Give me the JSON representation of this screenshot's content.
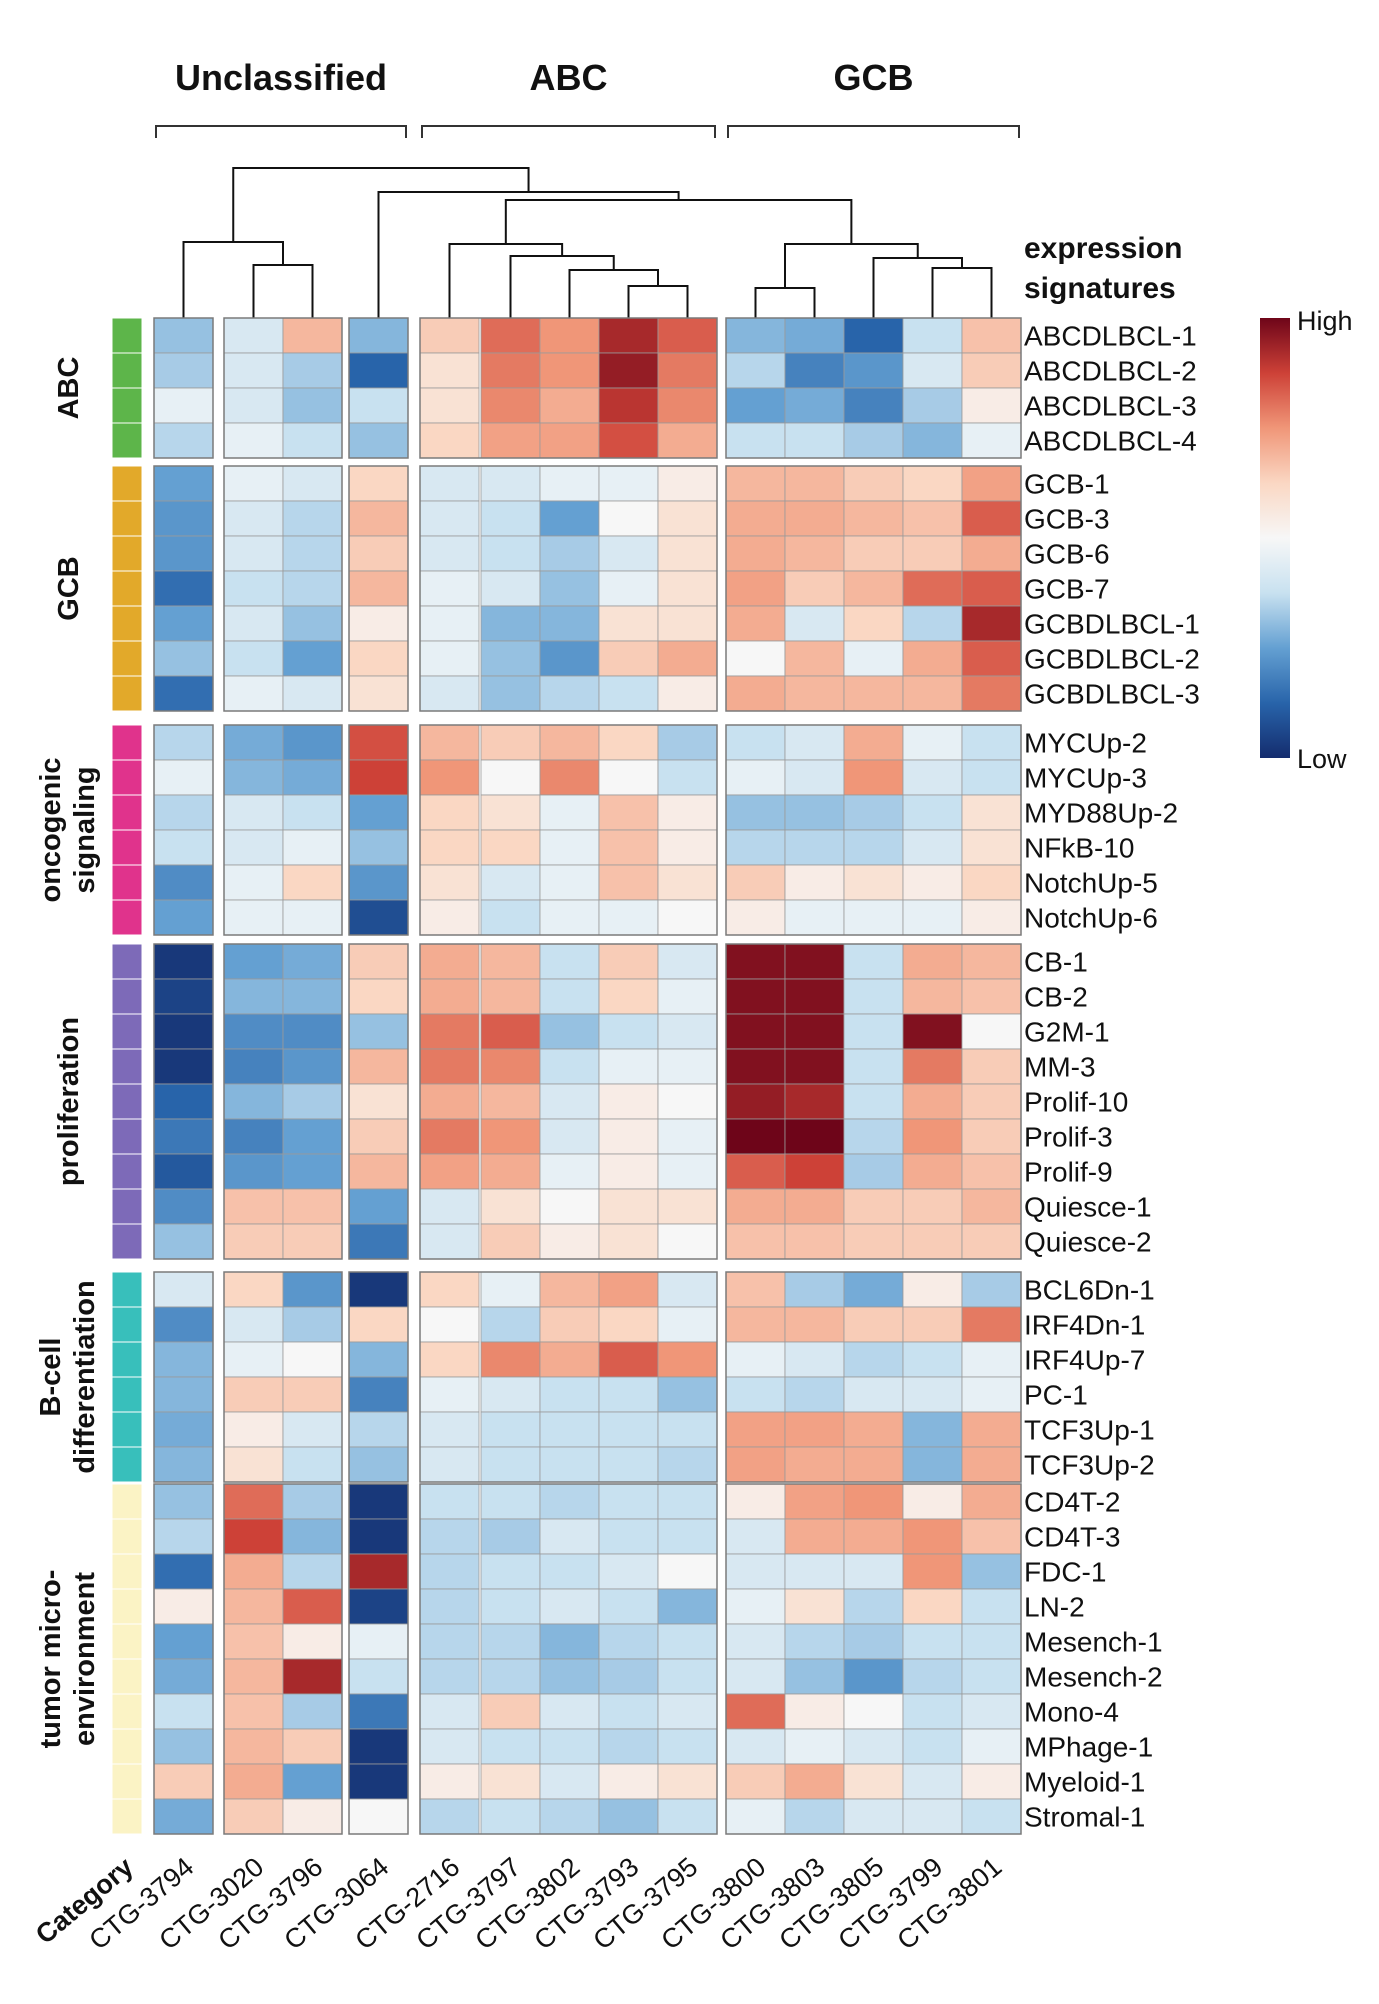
{
  "chart_data": {
    "type": "heatmap",
    "title": "",
    "column_groups": [
      {
        "label": "Unclassified",
        "columns": [
          "CTG-3794",
          "CTG-3020",
          "CTG-3796",
          "CTG-3064"
        ]
      },
      {
        "label": "ABC",
        "columns": [
          "CTG-2716",
          "CTG-3797",
          "CTG-3802",
          "CTG-3793",
          "CTG-3795"
        ]
      },
      {
        "label": "GCB",
        "columns": [
          "CTG-3800",
          "CTG-3803",
          "CTG-3805",
          "CTG-3799",
          "CTG-3801"
        ]
      }
    ],
    "columns": [
      "CTG-3794",
      "CTG-3020",
      "CTG-3796",
      "CTG-3064",
      "CTG-2716",
      "CTG-3797",
      "CTG-3802",
      "CTG-3793",
      "CTG-3795",
      "CTG-3800",
      "CTG-3803",
      "CTG-3805",
      "CTG-3799",
      "CTG-3801"
    ],
    "category_axis_label": "Category",
    "row_axis_title": "expression signatures",
    "legend": {
      "high_label": "High",
      "low_label": "Low",
      "range": [
        -1,
        1
      ]
    },
    "categories": [
      {
        "name": "ABC",
        "color": "#5db54a",
        "rows": [
          {
            "label": "ABCDLBCL-1",
            "values": [
              -0.3,
              -0.1,
              0.3,
              -0.35,
              0.2,
              0.6,
              0.45,
              0.85,
              0.65,
              -0.35,
              -0.4,
              -0.75,
              -0.15,
              0.25
            ]
          },
          {
            "label": "ABCDLBCL-2",
            "values": [
              -0.25,
              -0.1,
              -0.25,
              -0.75,
              0.1,
              0.55,
              0.45,
              0.9,
              0.55,
              -0.2,
              -0.6,
              -0.5,
              -0.1,
              0.2
            ]
          },
          {
            "label": "ABCDLBCL-3",
            "values": [
              -0.05,
              -0.1,
              -0.3,
              -0.15,
              0.1,
              0.5,
              0.35,
              0.8,
              0.5,
              -0.45,
              -0.4,
              -0.6,
              -0.25,
              0.05
            ]
          },
          {
            "label": "ABCDLBCL-4",
            "values": [
              -0.2,
              -0.05,
              -0.15,
              -0.3,
              0.15,
              0.4,
              0.4,
              0.7,
              0.35,
              -0.15,
              -0.15,
              -0.25,
              -0.35,
              -0.05
            ]
          }
        ]
      },
      {
        "name": "GCB",
        "color": "#e2a92a",
        "rows": [
          {
            "label": "GCB-1",
            "values": [
              -0.45,
              -0.05,
              -0.1,
              0.15,
              -0.1,
              -0.1,
              -0.05,
              -0.05,
              0.05,
              0.3,
              0.3,
              0.2,
              0.15,
              0.4
            ]
          },
          {
            "label": "GCB-3",
            "values": [
              -0.5,
              -0.1,
              -0.2,
              0.3,
              -0.1,
              -0.15,
              -0.45,
              0.0,
              0.1,
              0.35,
              0.35,
              0.3,
              0.25,
              0.65
            ]
          },
          {
            "label": "GCB-6",
            "values": [
              -0.5,
              -0.1,
              -0.2,
              0.2,
              -0.1,
              -0.15,
              -0.25,
              -0.1,
              0.1,
              0.35,
              0.3,
              0.2,
              0.2,
              0.35
            ]
          },
          {
            "label": "GCB-7",
            "values": [
              -0.7,
              -0.15,
              -0.2,
              0.3,
              -0.05,
              -0.1,
              -0.3,
              -0.05,
              0.1,
              0.4,
              0.2,
              0.3,
              0.6,
              0.65
            ]
          },
          {
            "label": "GCBDLBCL-1",
            "values": [
              -0.45,
              -0.1,
              -0.3,
              0.05,
              -0.05,
              -0.35,
              -0.35,
              0.1,
              0.1,
              0.35,
              -0.1,
              0.15,
              -0.2,
              0.85
            ]
          },
          {
            "label": "GCBDLBCL-2",
            "values": [
              -0.3,
              -0.15,
              -0.45,
              0.15,
              -0.05,
              -0.3,
              -0.5,
              0.2,
              0.35,
              0.0,
              0.3,
              -0.05,
              0.35,
              0.65
            ]
          },
          {
            "label": "GCBDLBCL-3",
            "values": [
              -0.7,
              -0.05,
              -0.1,
              0.1,
              -0.1,
              -0.3,
              -0.2,
              -0.15,
              0.05,
              0.35,
              0.3,
              0.3,
              0.3,
              0.55
            ]
          }
        ]
      },
      {
        "name": "oncogenic signaling",
        "color": "#e0338c",
        "rows": [
          {
            "label": "MYCUp-2",
            "values": [
              -0.2,
              -0.4,
              -0.5,
              0.7,
              0.3,
              0.2,
              0.3,
              0.15,
              -0.25,
              -0.15,
              -0.1,
              0.35,
              -0.05,
              -0.15
            ]
          },
          {
            "label": "MYCUp-3",
            "values": [
              -0.05,
              -0.35,
              -0.4,
              0.75,
              0.45,
              0.0,
              0.5,
              0.0,
              -0.15,
              -0.05,
              -0.1,
              0.45,
              -0.1,
              -0.15
            ]
          },
          {
            "label": "MYD88Up-2",
            "values": [
              -0.2,
              -0.1,
              -0.15,
              -0.45,
              0.15,
              0.1,
              -0.05,
              0.25,
              0.05,
              -0.3,
              -0.3,
              -0.25,
              -0.15,
              0.1
            ]
          },
          {
            "label": "NFkB-10",
            "values": [
              -0.15,
              -0.1,
              -0.05,
              -0.3,
              0.15,
              0.15,
              -0.05,
              0.25,
              0.05,
              -0.2,
              -0.2,
              -0.2,
              -0.1,
              0.1
            ]
          },
          {
            "label": "NotchUp-5",
            "values": [
              -0.55,
              -0.05,
              0.15,
              -0.5,
              0.1,
              -0.1,
              -0.05,
              0.25,
              0.1,
              0.2,
              0.05,
              0.1,
              0.05,
              0.15
            ]
          },
          {
            "label": "NotchUp-6",
            "values": [
              -0.45,
              -0.05,
              -0.05,
              -0.85,
              0.05,
              -0.15,
              -0.05,
              -0.05,
              0.0,
              0.05,
              -0.05,
              -0.05,
              -0.05,
              0.05
            ]
          }
        ]
      },
      {
        "name": "proliferation",
        "color": "#7d6ab8",
        "rows": [
          {
            "label": "CB-1",
            "values": [
              -0.95,
              -0.45,
              -0.4,
              0.2,
              0.35,
              0.3,
              -0.15,
              0.2,
              -0.1,
              0.95,
              0.95,
              -0.15,
              0.35,
              0.3
            ]
          },
          {
            "label": "CB-2",
            "values": [
              -0.9,
              -0.35,
              -0.35,
              0.15,
              0.35,
              0.3,
              -0.15,
              0.15,
              -0.05,
              0.95,
              0.95,
              -0.15,
              0.3,
              0.25
            ]
          },
          {
            "label": "G2M-1",
            "values": [
              -0.95,
              -0.55,
              -0.55,
              -0.3,
              0.55,
              0.65,
              -0.3,
              -0.15,
              -0.1,
              0.95,
              0.95,
              -0.15,
              0.95,
              0.0
            ]
          },
          {
            "label": "MM-3",
            "values": [
              -0.95,
              -0.6,
              -0.5,
              0.3,
              0.55,
              0.5,
              -0.15,
              -0.05,
              -0.05,
              0.95,
              0.95,
              -0.15,
              0.55,
              0.2
            ]
          },
          {
            "label": "Prolif-10",
            "values": [
              -0.75,
              -0.35,
              -0.25,
              0.1,
              0.35,
              0.3,
              -0.1,
              0.05,
              0.0,
              0.9,
              0.85,
              -0.15,
              0.35,
              0.2
            ]
          },
          {
            "label": "Prolif-3",
            "values": [
              -0.65,
              -0.6,
              -0.45,
              0.2,
              0.55,
              0.45,
              -0.1,
              0.05,
              -0.05,
              1.0,
              1.0,
              -0.2,
              0.45,
              0.2
            ]
          },
          {
            "label": "Prolif-9",
            "values": [
              -0.8,
              -0.5,
              -0.45,
              0.3,
              0.4,
              0.35,
              -0.05,
              0.05,
              -0.05,
              0.65,
              0.75,
              -0.25,
              0.35,
              0.25
            ]
          },
          {
            "label": "Quiesce-1",
            "values": [
              -0.55,
              0.25,
              0.25,
              -0.45,
              -0.1,
              0.1,
              0.0,
              0.1,
              0.1,
              0.35,
              0.35,
              0.2,
              0.2,
              0.3
            ]
          },
          {
            "label": "Quiesce-2",
            "values": [
              -0.3,
              0.2,
              0.2,
              -0.65,
              -0.1,
              0.2,
              0.05,
              0.1,
              0.0,
              0.25,
              0.25,
              0.2,
              0.2,
              0.2
            ]
          }
        ]
      },
      {
        "name": "B-cell differentiation",
        "color": "#38bfbb",
        "rows": [
          {
            "label": "BCL6Dn-1",
            "values": [
              -0.1,
              0.15,
              -0.5,
              -0.95,
              0.15,
              -0.05,
              0.3,
              0.4,
              -0.1,
              0.25,
              -0.25,
              -0.4,
              0.05,
              -0.25
            ]
          },
          {
            "label": "IRF4Dn-1",
            "values": [
              -0.55,
              -0.1,
              -0.25,
              0.15,
              0.0,
              -0.2,
              0.2,
              0.15,
              -0.05,
              0.3,
              0.3,
              0.2,
              0.2,
              0.55
            ]
          },
          {
            "label": "IRF4Up-7",
            "values": [
              -0.35,
              -0.05,
              0.0,
              -0.35,
              0.15,
              0.5,
              0.35,
              0.65,
              0.45,
              -0.05,
              -0.1,
              -0.2,
              -0.15,
              -0.05
            ]
          },
          {
            "label": "PC-1",
            "values": [
              -0.35,
              0.2,
              0.2,
              -0.6,
              -0.05,
              -0.1,
              -0.15,
              -0.15,
              -0.3,
              -0.15,
              -0.2,
              -0.1,
              -0.1,
              -0.05
            ]
          },
          {
            "label": "TCF3Up-1",
            "values": [
              -0.4,
              0.05,
              -0.1,
              -0.2,
              -0.1,
              -0.15,
              -0.15,
              -0.15,
              -0.15,
              0.4,
              0.4,
              0.35,
              -0.35,
              0.35
            ]
          },
          {
            "label": "TCF3Up-2",
            "values": [
              -0.35,
              0.1,
              -0.15,
              -0.3,
              -0.1,
              -0.15,
              -0.15,
              -0.15,
              -0.2,
              0.4,
              0.35,
              0.35,
              -0.35,
              0.35
            ]
          }
        ]
      },
      {
        "name": "tumor micro-environment",
        "color": "#fbf3c5",
        "rows": [
          {
            "label": "CD4T-2",
            "values": [
              -0.3,
              0.6,
              -0.25,
              -0.95,
              -0.15,
              -0.15,
              -0.2,
              -0.15,
              -0.15,
              0.05,
              0.4,
              0.45,
              0.05,
              0.35
            ]
          },
          {
            "label": "CD4T-3",
            "values": [
              -0.2,
              0.75,
              -0.35,
              -0.95,
              -0.2,
              -0.25,
              -0.1,
              -0.15,
              -0.15,
              -0.1,
              0.35,
              0.35,
              0.45,
              0.25
            ]
          },
          {
            "label": "FDC-1",
            "values": [
              -0.7,
              0.35,
              -0.2,
              0.85,
              -0.2,
              -0.15,
              -0.15,
              -0.1,
              0.0,
              -0.1,
              -0.1,
              -0.1,
              0.45,
              -0.3
            ]
          },
          {
            "label": "LN-2",
            "values": [
              0.05,
              0.3,
              0.65,
              -0.9,
              -0.2,
              -0.15,
              -0.1,
              -0.15,
              -0.35,
              -0.05,
              0.1,
              -0.2,
              0.15,
              -0.15
            ]
          },
          {
            "label": "Mesench-1",
            "values": [
              -0.45,
              0.25,
              0.05,
              -0.05,
              -0.2,
              -0.2,
              -0.35,
              -0.2,
              -0.15,
              -0.1,
              -0.2,
              -0.25,
              -0.15,
              -0.15
            ]
          },
          {
            "label": "Mesench-2",
            "values": [
              -0.4,
              0.3,
              0.85,
              -0.15,
              -0.2,
              -0.2,
              -0.3,
              -0.25,
              -0.15,
              -0.1,
              -0.3,
              -0.5,
              -0.2,
              -0.15
            ]
          },
          {
            "label": "Mono-4",
            "values": [
              -0.15,
              0.25,
              -0.25,
              -0.65,
              -0.1,
              0.2,
              -0.1,
              -0.15,
              -0.1,
              0.6,
              0.05,
              0.0,
              -0.15,
              -0.1
            ]
          },
          {
            "label": "MPhage-1",
            "values": [
              -0.3,
              0.3,
              0.2,
              -0.95,
              -0.1,
              -0.15,
              -0.15,
              -0.2,
              -0.15,
              -0.1,
              -0.05,
              -0.1,
              -0.15,
              -0.05
            ]
          },
          {
            "label": "Myeloid-1",
            "values": [
              0.2,
              0.35,
              -0.45,
              -0.95,
              0.05,
              0.1,
              -0.1,
              0.05,
              0.1,
              0.2,
              0.35,
              0.1,
              -0.1,
              0.05
            ]
          },
          {
            "label": "Stromal-1",
            "values": [
              -0.4,
              0.2,
              0.05,
              0.0,
              -0.2,
              -0.15,
              -0.2,
              -0.3,
              -0.15,
              -0.05,
              -0.2,
              -0.1,
              -0.1,
              -0.15
            ]
          }
        ]
      }
    ]
  }
}
